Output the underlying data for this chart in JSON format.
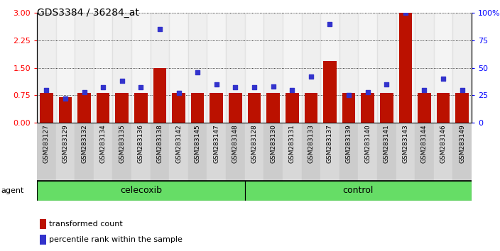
{
  "title": "GDS3384 / 36284_at",
  "samples": [
    "GSM283127",
    "GSM283129",
    "GSM283132",
    "GSM283134",
    "GSM283135",
    "GSM283136",
    "GSM283138",
    "GSM283142",
    "GSM283145",
    "GSM283147",
    "GSM283148",
    "GSM283128",
    "GSM283130",
    "GSM283131",
    "GSM283133",
    "GSM283137",
    "GSM283139",
    "GSM283140",
    "GSM283141",
    "GSM283143",
    "GSM283144",
    "GSM283146",
    "GSM283149"
  ],
  "red_values": [
    0.82,
    0.7,
    0.82,
    0.82,
    0.82,
    0.82,
    1.5,
    0.82,
    0.82,
    0.82,
    0.82,
    0.82,
    0.82,
    0.82,
    0.82,
    1.68,
    0.82,
    0.82,
    0.82,
    3.0,
    0.82,
    0.82,
    0.82
  ],
  "blue_values": [
    30,
    22,
    28,
    32,
    38,
    32,
    85,
    27,
    46,
    35,
    32,
    32,
    33,
    30,
    42,
    90,
    25,
    28,
    35,
    100,
    30,
    40,
    30
  ],
  "celecoxib_count": 11,
  "control_count": 12,
  "ylim_left": [
    0,
    3.0
  ],
  "ylim_right": [
    0,
    100
  ],
  "yticks_left": [
    0,
    0.75,
    1.5,
    2.25,
    3.0
  ],
  "yticks_right": [
    0,
    25,
    50,
    75,
    100
  ],
  "bar_color": "#bb1100",
  "dot_color": "#3333cc",
  "group_color": "#66dd66",
  "col_bg_even": "#cccccc",
  "col_bg_odd": "#dddddd",
  "agent_label": "agent",
  "celecoxib_label": "celecoxib",
  "control_label": "control",
  "legend_red": "transformed count",
  "legend_blue": "percentile rank within the sample"
}
